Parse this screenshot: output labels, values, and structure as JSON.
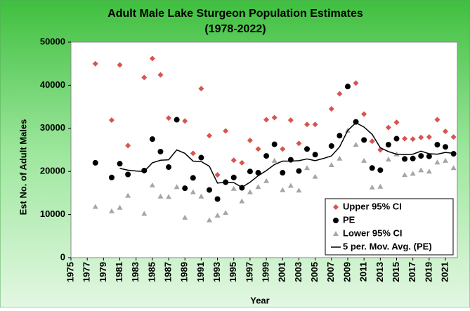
{
  "chart_data": {
    "type": "scatter",
    "title": "Adult Male Lake Sturgeon Population Estimates",
    "subtitle": "(1978-2022)",
    "x_label": "Year",
    "y_label": "Est No. of Adult Males",
    "xlim": [
      1975,
      2022
    ],
    "ylim": [
      0,
      50000
    ],
    "xticks": [
      1975,
      1977,
      1979,
      1981,
      1983,
      1985,
      1987,
      1989,
      1991,
      1993,
      1995,
      1997,
      1999,
      2001,
      2003,
      2005,
      2007,
      2009,
      2011,
      2013,
      2015,
      2017,
      2019,
      2021
    ],
    "yticks": [
      0,
      10000,
      20000,
      30000,
      40000,
      50000
    ],
    "legend": "lower right",
    "series": [
      {
        "name": "Upper 95% CI",
        "color": "#d9534f",
        "marker": "diamond",
        "x": [
          1978,
          1980,
          1981,
          1982,
          1984,
          1985,
          1986,
          1987,
          1989,
          1990,
          1991,
          1992,
          1993,
          1994,
          1995,
          1996,
          1997,
          1998,
          1999,
          2000,
          2001,
          2002,
          2003,
          2004,
          2005,
          2007,
          2008,
          2009,
          2010,
          2011,
          2012,
          2013,
          2014,
          2015,
          2016,
          2017,
          2018,
          2019,
          2020,
          2021,
          2022
        ],
        "values": [
          45000,
          31900,
          44700,
          26000,
          41800,
          46200,
          42400,
          32400,
          31700,
          24200,
          39200,
          28300,
          19200,
          29400,
          22600,
          22000,
          27200,
          25200,
          32000,
          32500,
          25200,
          31900,
          26500,
          30900,
          30900,
          34500,
          38000,
          39800,
          40500,
          33300,
          27000,
          25000,
          30200,
          31400,
          27600,
          27500,
          27900,
          28000,
          32000,
          29300,
          28000
        ]
      },
      {
        "name": "PE",
        "color": "#000000",
        "marker": "circle",
        "x": [
          1978,
          1980,
          1981,
          1982,
          1984,
          1985,
          1986,
          1987,
          1988,
          1989,
          1990,
          1991,
          1992,
          1993,
          1994,
          1995,
          1996,
          1997,
          1998,
          1999,
          2000,
          2001,
          2002,
          2003,
          2004,
          2005,
          2007,
          2008,
          2009,
          2010,
          2011,
          2012,
          2013,
          2014,
          2015,
          2016,
          2017,
          2018,
          2019,
          2020,
          2021,
          2022
        ],
        "values": [
          22000,
          18600,
          21800,
          19300,
          20200,
          27500,
          24600,
          21000,
          32000,
          16100,
          18500,
          23200,
          15700,
          13600,
          17500,
          18600,
          16200,
          20000,
          19700,
          23600,
          26300,
          19700,
          22700,
          20100,
          25200,
          23900,
          25900,
          28300,
          39700,
          31500,
          27300,
          20800,
          20300,
          26200,
          27600,
          22900,
          23000,
          23600,
          23500,
          26200,
          25700,
          24100
        ]
      },
      {
        "name": "Lower 95% CI",
        "color": "#a6a6a6",
        "marker": "triangle",
        "x": [
          1978,
          1980,
          1981,
          1982,
          1984,
          1985,
          1986,
          1987,
          1988,
          1989,
          1990,
          1991,
          1992,
          1993,
          1994,
          1995,
          1996,
          1997,
          1998,
          1999,
          2000,
          2001,
          2002,
          2003,
          2004,
          2005,
          2007,
          2008,
          2009,
          2010,
          2011,
          2012,
          2013,
          2014,
          2015,
          2016,
          2017,
          2018,
          2019,
          2020,
          2021,
          2022
        ],
        "values": [
          11800,
          10800,
          11600,
          14400,
          10200,
          16800,
          14200,
          14100,
          16400,
          9300,
          15200,
          14200,
          8700,
          9800,
          10400,
          16000,
          13100,
          15200,
          16400,
          17800,
          22500,
          15700,
          16700,
          15600,
          20800,
          18800,
          21500,
          23000,
          29500,
          26200,
          22500,
          16300,
          16500,
          22800,
          24000,
          19200,
          19500,
          20300,
          20000,
          22100,
          22500,
          20800
        ]
      },
      {
        "name": "5 per. Mov. Avg. (PE)",
        "color": "#000000",
        "marker": "line",
        "x": [
          1981,
          1982,
          1983,
          1984,
          1985,
          1986,
          1987,
          1988,
          1989,
          1990,
          1991,
          1992,
          1993,
          1994,
          1995,
          1996,
          1997,
          1998,
          1999,
          2000,
          2001,
          2002,
          2003,
          2004,
          2005,
          2006,
          2007,
          2008,
          2009,
          2010,
          2011,
          2012,
          2013,
          2014,
          2015,
          2016,
          2017,
          2018,
          2019,
          2020,
          2021,
          2022
        ],
        "values": [
          20700,
          20300,
          20100,
          20000,
          22000,
          22600,
          22700,
          25000,
          24200,
          22400,
          22300,
          21200,
          17300,
          17500,
          17400,
          16300,
          17500,
          19000,
          20200,
          21600,
          22400,
          22400,
          22500,
          22900,
          22500,
          23000,
          23600,
          25700,
          29500,
          31300,
          30300,
          28600,
          25500,
          24600,
          24000,
          23900,
          24000,
          24700,
          24100,
          24000,
          24400,
          24200
        ]
      }
    ]
  }
}
